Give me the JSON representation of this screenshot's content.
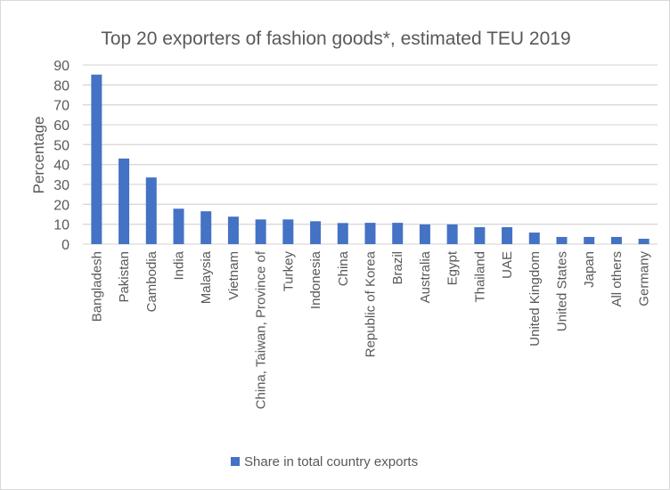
{
  "chart_data": {
    "type": "bar",
    "title": "Top 20 exporters of fashion goods*, estimated TEU 2019",
    "xlabel": "",
    "ylabel": "Percentage",
    "ylim": [
      0,
      90
    ],
    "yticks": [
      0,
      10,
      20,
      30,
      40,
      50,
      60,
      70,
      80,
      90
    ],
    "grid": true,
    "legend_position": "bottom",
    "categories": [
      "Bangladesh",
      "Pakistan",
      "Cambodia",
      "India",
      "Malaysia",
      "Vietnam",
      "China, Taiwan, Province of",
      "Turkey",
      "Indonesia",
      "China",
      "Republic of Korea",
      "Brazil",
      "Australia",
      "Egypt",
      "Thailand",
      "UAE",
      "United Kingdom",
      "United States",
      "Japan",
      "All others",
      "Germany"
    ],
    "series": [
      {
        "name": "Share in total country exports",
        "color": "#4472c4",
        "values": [
          85.2,
          43,
          33.5,
          17.8,
          16.5,
          13.8,
          12.4,
          12.4,
          11.5,
          10.6,
          10.7,
          10.7,
          9.9,
          9.9,
          8.5,
          8.5,
          5.8,
          3.6,
          3.6,
          3.6,
          2.7
        ]
      }
    ]
  }
}
